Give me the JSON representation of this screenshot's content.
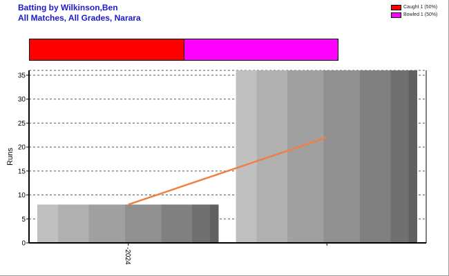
{
  "header": {
    "title": "Batting by Wilkinson,Ben",
    "subtitle": "All Matches, All Grades, Narara"
  },
  "legend": [
    {
      "label": "Caught 1 (50%)",
      "color": "#ff0000",
      "value": 1,
      "percent": 50
    },
    {
      "label": "Bowled 1 (50%)",
      "color": "#ff00ff",
      "value": 1,
      "percent": 50
    }
  ],
  "chart_data": {
    "type": "bar",
    "ylabel": "Runs",
    "xlabel": "",
    "ylim": [
      0,
      36
    ],
    "yticks": [
      0,
      5,
      10,
      15,
      20,
      25,
      30,
      35
    ],
    "grid": true,
    "categories": [
      "2024",
      ""
    ],
    "values": [
      8,
      36
    ],
    "trend_line": {
      "color": "#f08040",
      "values": [
        8,
        22
      ]
    },
    "bar_shades": [
      "#c0c0c0",
      "#b0b0b0",
      "#a0a0a0",
      "#909090",
      "#808080",
      "#707070",
      "#606060"
    ]
  }
}
